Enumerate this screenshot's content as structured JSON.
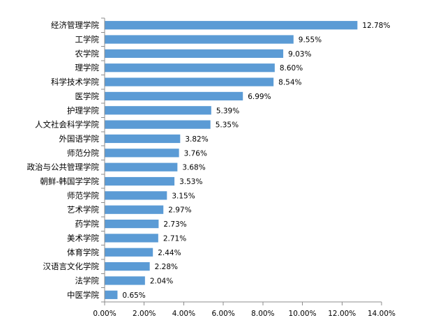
{
  "chart_data": {
    "type": "bar",
    "orientation": "horizontal",
    "title": "",
    "xlabel": "",
    "ylabel": "",
    "xlim": [
      0,
      14
    ],
    "x_ticks": [
      "0.00%",
      "2.00%",
      "4.00%",
      "6.00%",
      "8.00%",
      "10.00%",
      "12.00%",
      "14.00%"
    ],
    "grid": false,
    "bar_color": "#5b9bd5",
    "categories": [
      "经济管理学院",
      "工学院",
      "农学院",
      "理学院",
      "科学技术学院",
      "医学院",
      "护理学院",
      "人文社会科学学院",
      "外国语学院",
      "师范分院",
      "政治与公共管理学院",
      "朝鲜-韩国学学院",
      "师范学院",
      "艺术学院",
      "药学院",
      "美术学院",
      "体育学院",
      "汉语言文化学院",
      "法学院",
      "中医学院"
    ],
    "values": [
      12.78,
      9.55,
      9.03,
      8.6,
      8.54,
      6.99,
      5.39,
      5.35,
      3.82,
      3.76,
      3.68,
      3.53,
      3.15,
      2.97,
      2.73,
      2.71,
      2.44,
      2.28,
      2.04,
      0.65
    ],
    "value_labels": [
      "12.78%",
      "9.55%",
      "9.03%",
      "8.60%",
      "8.54%",
      "6.99%",
      "5.39%",
      "5.35%",
      "3.82%",
      "3.76%",
      "3.68%",
      "3.53%",
      "3.15%",
      "2.97%",
      "2.73%",
      "2.71%",
      "2.44%",
      "2.28%",
      "2.04%",
      "0.65%"
    ]
  }
}
